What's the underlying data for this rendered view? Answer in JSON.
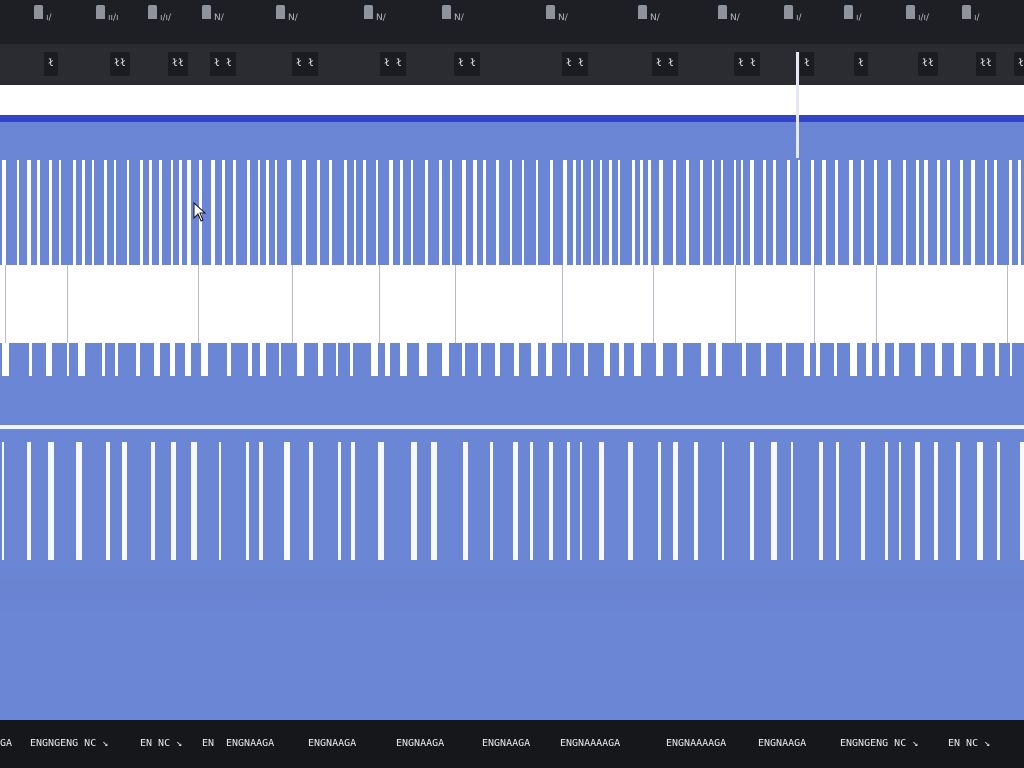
{
  "colors": {
    "page_blue": "#6b86d4",
    "accent_blue": "#3444c9",
    "tabstrip": "#1e1f24",
    "toolbar": "#2a2c31",
    "statusbar": "#16171b"
  },
  "tabstrip": {
    "tabs": [
      {
        "label": "ı/"
      },
      {
        "label": "ıı/ı"
      },
      {
        "label": "ı/ı/"
      },
      {
        "label": "N/"
      },
      {
        "label": "N/"
      },
      {
        "label": "N/"
      },
      {
        "label": "N/"
      },
      {
        "label": "N/"
      },
      {
        "label": "N/"
      },
      {
        "label": "N/"
      },
      {
        "label": "ı/"
      },
      {
        "label": "ı/"
      },
      {
        "label": "ı/ı/"
      },
      {
        "label": "ı/"
      }
    ]
  },
  "addressbar": {
    "markers": [
      {
        "label": "ł"
      },
      {
        "label": "łł"
      },
      {
        "label": "łł"
      },
      {
        "label": "ł ł"
      },
      {
        "label": "ł ł"
      },
      {
        "label": "ł ł"
      },
      {
        "label": "ł ł"
      },
      {
        "label": "ł ł"
      },
      {
        "label": "ł ł"
      },
      {
        "label": "ł ł"
      },
      {
        "label": "ł"
      },
      {
        "label": "ł"
      },
      {
        "label": "łł"
      },
      {
        "label": "łł"
      },
      {
        "label": "ł"
      }
    ]
  },
  "statusbar": {
    "items": [
      {
        "label": "GA"
      },
      {
        "label": "ENGNGENG NC ↘"
      },
      {
        "label": "EN NC ↘"
      },
      {
        "label": "EN"
      },
      {
        "label": "ENGNAAGA"
      },
      {
        "label": "ENGNAAGA"
      },
      {
        "label": "ENGNAAGA"
      },
      {
        "label": "ENGNAAGA"
      },
      {
        "label": "ENGNAAAAGA"
      },
      {
        "label": "ENGNAAAAGA"
      },
      {
        "label": "ENGNAAGA"
      },
      {
        "label": "ENGNGENG NC ↘"
      },
      {
        "label": "EN NC ↘"
      }
    ]
  }
}
